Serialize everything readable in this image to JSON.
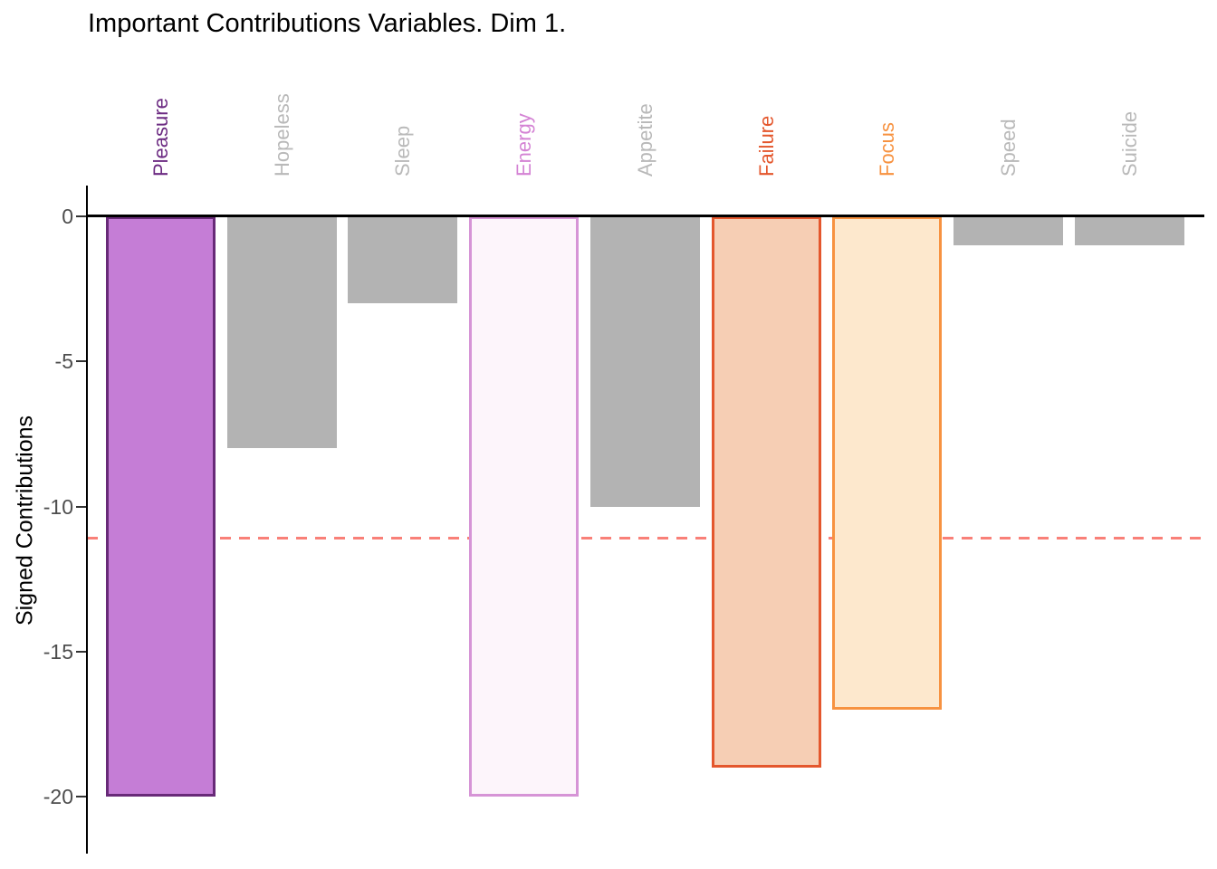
{
  "chart_data": {
    "type": "bar",
    "title": "Important Contributions Variables. Dim 1.",
    "ylabel": "Signed Contributions",
    "xlabel": "",
    "categories": [
      "Pleasure",
      "Hopeless",
      "Sleep",
      "Energy",
      "Appetite",
      "Failure",
      "Focus",
      "Speed",
      "Suicide"
    ],
    "values": [
      -20,
      -8,
      -3,
      -20,
      -10,
      -19,
      -17,
      -1,
      -1
    ],
    "yticks": [
      0,
      -5,
      -10,
      -15,
      -20
    ],
    "ylim": [
      -22,
      0.5
    ],
    "grid": false,
    "legend": "none",
    "x_labels_position": "top-rotated-90",
    "threshold_line": {
      "value": -11.1,
      "style": "dashed",
      "color": "#f98078"
    },
    "bar_styles": [
      {
        "fill": "#c57dd6",
        "stroke": "#682a78",
        "label_color": "#6c2b82"
      },
      {
        "fill": "#b3b3b3",
        "stroke": null,
        "label_color": "#b9b9b9"
      },
      {
        "fill": "#b3b3b3",
        "stroke": null,
        "label_color": "#b9b9b9"
      },
      {
        "fill": "#fdf5fb",
        "stroke": "#d694d6",
        "label_color": "#d483d4"
      },
      {
        "fill": "#b3b3b3",
        "stroke": null,
        "label_color": "#b9b9b9"
      },
      {
        "fill": "#f6ceb4",
        "stroke": "#e4572d",
        "label_color": "#e4572d"
      },
      {
        "fill": "#fde8cd",
        "stroke": "#f79240",
        "label_color": "#f79240"
      },
      {
        "fill": "#b3b3b3",
        "stroke": null,
        "label_color": "#b9b9b9"
      },
      {
        "fill": "#b3b3b3",
        "stroke": null,
        "label_color": "#b9b9b9"
      }
    ]
  },
  "colors": {
    "background": "#ffffff",
    "axis": "#000000",
    "tick_text": "#4d4d4d",
    "gray_bar": "#b3b3b3",
    "gray_label": "#b9b9b9"
  }
}
